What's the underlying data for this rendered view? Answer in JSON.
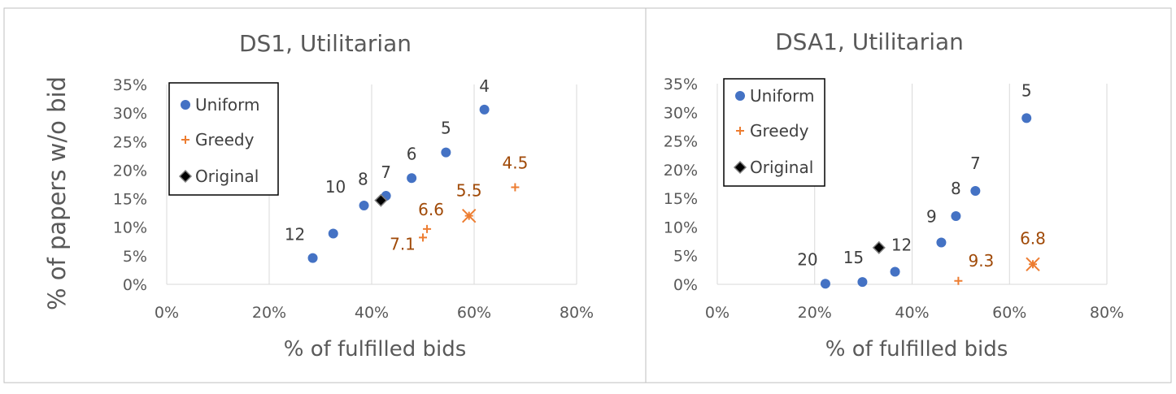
{
  "ylabel": "% of papers w/o bid",
  "colors": {
    "uniform": "#4472C4",
    "greedy": "#ED7D31",
    "greedy_label": "#A04A08",
    "original_fill": "#000000",
    "grid": "#D9D9D9",
    "axis_text": "#595959",
    "frame": "#BFBFBF"
  },
  "chart_data": [
    {
      "type": "scatter",
      "title": "DS1, Utilitarian",
      "xlabel": "% of fulfilled bids",
      "xlim": [
        0,
        0.8
      ],
      "ylim": [
        0,
        0.35
      ],
      "x_ticks": [
        0,
        0.2,
        0.4,
        0.6,
        0.8
      ],
      "x_tick_labels": [
        "0%",
        "20%",
        "40%",
        "60%",
        "80%"
      ],
      "y_ticks": [
        0,
        0.05,
        0.1,
        0.15,
        0.2,
        0.25,
        0.3,
        0.35
      ],
      "y_tick_labels": [
        "0%",
        "5%",
        "10%",
        "15%",
        "20%",
        "25%",
        "30%",
        "35%"
      ],
      "grid": "vertical",
      "legend_position": "top-left",
      "series": [
        {
          "name": "Uniform",
          "marker": "circle",
          "color": "#4472C4",
          "points": [
            {
              "x": 0.285,
              "y": 0.046,
              "label": "12"
            },
            {
              "x": 0.325,
              "y": 0.089,
              "label": ""
            },
            {
              "x": 0.385,
              "y": 0.138,
              "label": "10"
            },
            {
              "x": 0.428,
              "y": 0.155,
              "label": "7"
            },
            {
              "x": 0.478,
              "y": 0.186,
              "label": "6"
            },
            {
              "x": 0.545,
              "y": 0.231,
              "label": "5"
            },
            {
              "x": 0.62,
              "y": 0.306,
              "label": "4"
            }
          ]
        },
        {
          "name": "Greedy",
          "marker": "plus",
          "color": "#ED7D31",
          "points": [
            {
              "x": 0.5,
              "y": 0.082,
              "label": "7.1"
            },
            {
              "x": 0.508,
              "y": 0.097,
              "label": "6.6"
            },
            {
              "x": 0.59,
              "y": 0.12,
              "label": "5.5"
            },
            {
              "x": 0.68,
              "y": 0.17,
              "label": "4.5"
            }
          ]
        },
        {
          "name": "Original",
          "marker": "diamond",
          "color": "#000000",
          "points": [
            {
              "x": 0.418,
              "y": 0.147,
              "label": "8"
            }
          ]
        }
      ],
      "highlight_mark": {
        "x": 0.59,
        "y": 0.12
      }
    },
    {
      "type": "scatter",
      "title": "DSA1, Utilitarian",
      "xlabel": "% of fulfilled bids",
      "xlim": [
        0,
        0.8
      ],
      "ylim": [
        0,
        0.35
      ],
      "x_ticks": [
        0,
        0.2,
        0.4,
        0.6,
        0.8
      ],
      "x_tick_labels": [
        "0%",
        "20%",
        "40%",
        "60%",
        "80%"
      ],
      "y_ticks": [
        0,
        0.05,
        0.1,
        0.15,
        0.2,
        0.25,
        0.3,
        0.35
      ],
      "y_tick_labels": [
        "0%",
        "5%",
        "10%",
        "15%",
        "20%",
        "25%",
        "30%",
        "35%"
      ],
      "grid": "vertical",
      "legend_position": "top-left",
      "series": [
        {
          "name": "Uniform",
          "marker": "circle",
          "color": "#4472C4",
          "points": [
            {
              "x": 0.222,
              "y": 0.001,
              "label": "20"
            },
            {
              "x": 0.298,
              "y": 0.004,
              "label": "15"
            },
            {
              "x": 0.365,
              "y": 0.022,
              "label": "12"
            },
            {
              "x": 0.46,
              "y": 0.073,
              "label": "9"
            },
            {
              "x": 0.49,
              "y": 0.119,
              "label": "8"
            },
            {
              "x": 0.53,
              "y": 0.163,
              "label": "7"
            },
            {
              "x": 0.635,
              "y": 0.29,
              "label": "5"
            }
          ]
        },
        {
          "name": "Greedy",
          "marker": "plus",
          "color": "#ED7D31",
          "points": [
            {
              "x": 0.495,
              "y": 0.006,
              "label": "9.3"
            },
            {
              "x": 0.648,
              "y": 0.035,
              "label": "6.8"
            }
          ]
        },
        {
          "name": "Original",
          "marker": "diamond",
          "color": "#000000",
          "points": [
            {
              "x": 0.332,
              "y": 0.064,
              "label": ""
            }
          ]
        }
      ],
      "highlight_mark": {
        "x": 0.648,
        "y": 0.035
      }
    }
  ]
}
